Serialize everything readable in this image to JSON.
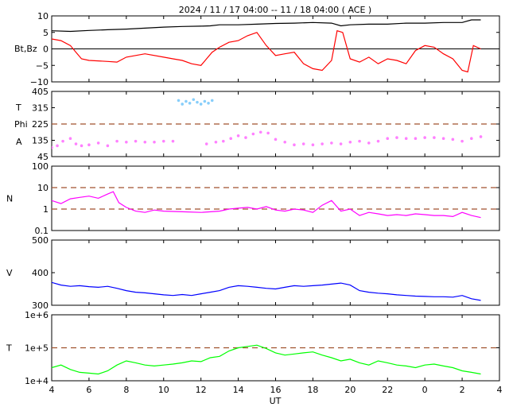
{
  "chart_data": {
    "type": "line",
    "title": "2024 / 11 / 17   04:00 -- 11 / 18   04:00 ( ACE )",
    "xlabel": "UT",
    "x_ticks": [
      "4",
      "6",
      "8",
      "10",
      "12",
      "14",
      "16",
      "18",
      "20",
      "22",
      "0",
      "2",
      "4"
    ],
    "x_range_hours": [
      4,
      28
    ],
    "data_end_hour": 27.0,
    "panels": [
      {
        "id": "magnetic",
        "ylabel": "Bt,Bz",
        "ylim": [
          -10,
          10
        ],
        "y_ticks": [
          "10",
          "5",
          "0",
          "−5",
          "−10"
        ],
        "y_tick_values": [
          10,
          5,
          0,
          -5,
          -10
        ],
        "scale": "linear",
        "zero_line": 0,
        "series": [
          {
            "name": "Bt",
            "color": "#000000",
            "style": "line",
            "x": [
              4.0,
              5.0,
              6.0,
              7.0,
              8.0,
              9.0,
              10.0,
              11.0,
              12.0,
              12.5,
              13.0,
              14.0,
              15.0,
              16.0,
              17.0,
              18.0,
              19.0,
              19.5,
              20.0,
              21.0,
              22.0,
              23.0,
              24.0,
              25.0,
              26.0,
              26.5,
              27.0
            ],
            "y": [
              5.5,
              5.3,
              5.6,
              5.8,
              6.0,
              6.3,
              6.6,
              6.8,
              6.9,
              7.0,
              7.3,
              7.3,
              7.5,
              7.7,
              7.8,
              8.0,
              7.8,
              7.0,
              7.3,
              7.5,
              7.5,
              7.8,
              7.8,
              8.0,
              8.0,
              8.8,
              8.8
            ]
          },
          {
            "name": "Bz",
            "color": "#ff0000",
            "style": "line",
            "x": [
              4.0,
              4.5,
              5.0,
              5.3,
              5.6,
              6.0,
              7.0,
              7.5,
              8.0,
              9.0,
              10.0,
              10.5,
              11.0,
              11.5,
              12.0,
              12.3,
              12.6,
              13.0,
              13.5,
              14.0,
              14.5,
              15.0,
              15.5,
              16.0,
              16.5,
              17.0,
              17.5,
              18.0,
              18.5,
              19.0,
              19.3,
              19.6,
              20.0,
              20.5,
              21.0,
              21.5,
              22.0,
              22.5,
              23.0,
              23.5,
              24.0,
              24.5,
              25.0,
              25.5,
              26.0,
              26.3,
              26.6,
              27.0
            ],
            "y": [
              3.0,
              2.5,
              1.0,
              -1.0,
              -3.0,
              -3.5,
              -3.8,
              -4.0,
              -2.5,
              -1.5,
              -2.5,
              -3.0,
              -3.5,
              -4.5,
              -5.0,
              -3.0,
              -1.0,
              0.5,
              2.0,
              2.5,
              4.0,
              5.0,
              1.0,
              -2.0,
              -1.5,
              -1.0,
              -4.5,
              -6.0,
              -6.5,
              -3.5,
              5.5,
              5.0,
              -3.0,
              -4.0,
              -2.5,
              -4.5,
              -3.0,
              -3.5,
              -4.5,
              -0.5,
              1.0,
              0.5,
              -1.5,
              -3.0,
              -6.5,
              -7.0,
              1.0,
              0.0
            ]
          }
        ]
      },
      {
        "id": "angles",
        "ylabel_top": "T",
        "ylabel_mid": "Phi",
        "ylabel_bottom": "A",
        "ylim": [
          45,
          405
        ],
        "y_ticks": [
          "405",
          "315",
          "225",
          "135",
          "45"
        ],
        "y_tick_values": [
          405,
          315,
          225,
          135,
          45
        ],
        "scale": "linear",
        "ref_lines": [
          225
        ],
        "series": [
          {
            "name": "Phi (away)",
            "color": "#87cefa",
            "style": "dots",
            "x": [
              10.8,
              11.0,
              11.2,
              11.4,
              11.6,
              11.8,
              12.0,
              12.2,
              12.4,
              12.6
            ],
            "y": [
              355,
              335,
              350,
              340,
              360,
              345,
              335,
              350,
              340,
              355
            ]
          },
          {
            "name": "Phi (toward)",
            "color": "#ff80ff",
            "style": "dots",
            "x": [
              4.0,
              4.3,
              4.6,
              5.0,
              5.3,
              5.6,
              6.0,
              6.5,
              7.0,
              7.5,
              8.0,
              8.5,
              9.0,
              9.5,
              10.0,
              10.5,
              12.3,
              12.8,
              13.2,
              13.6,
              14.0,
              14.4,
              14.8,
              15.2,
              15.6,
              16.0,
              16.5,
              17.0,
              17.5,
              18.0,
              18.5,
              19.0,
              19.5,
              20.0,
              20.5,
              21.0,
              21.5,
              22.0,
              22.5,
              23.0,
              23.5,
              24.0,
              24.5,
              25.0,
              25.5,
              26.0,
              26.5,
              27.0
            ],
            "y": [
              95,
              105,
              130,
              145,
              115,
              105,
              110,
              120,
              105,
              130,
              125,
              130,
              125,
              125,
              130,
              130,
              115,
              125,
              130,
              145,
              160,
              150,
              170,
              180,
              175,
              140,
              125,
              110,
              115,
              110,
              115,
              120,
              115,
              125,
              130,
              120,
              130,
              145,
              150,
              145,
              145,
              150,
              150,
              145,
              140,
              130,
              145,
              155
            ]
          }
        ]
      },
      {
        "id": "density",
        "ylabel": "N",
        "ylim": [
          0.1,
          100
        ],
        "y_ticks": [
          "100",
          "10",
          "1",
          "0.1"
        ],
        "y_tick_values": [
          100,
          10,
          1,
          0.1
        ],
        "scale": "log",
        "ref_lines": [
          10,
          1
        ],
        "series": [
          {
            "name": "N",
            "color": "#ff00ff",
            "style": "line",
            "x": [
              4.0,
              4.5,
              5.0,
              5.5,
              6.0,
              6.5,
              7.0,
              7.3,
              7.6,
              8.0,
              8.5,
              9.0,
              9.5,
              10.0,
              11.0,
              12.0,
              13.0,
              13.5,
              14.0,
              14.5,
              15.0,
              15.5,
              16.0,
              16.5,
              17.0,
              17.5,
              18.0,
              18.5,
              19.0,
              19.5,
              20.0,
              20.5,
              21.0,
              21.5,
              22.0,
              22.5,
              23.0,
              23.5,
              24.0,
              24.5,
              25.0,
              25.5,
              26.0,
              26.5,
              27.0
            ],
            "y": [
              2.5,
              1.8,
              3.0,
              3.5,
              4.0,
              3.2,
              5.0,
              6.5,
              2.0,
              1.2,
              0.8,
              0.7,
              0.9,
              0.8,
              0.75,
              0.7,
              0.8,
              1.0,
              1.1,
              1.2,
              1.0,
              1.3,
              0.9,
              0.8,
              1.0,
              0.9,
              0.7,
              1.5,
              2.5,
              0.8,
              1.0,
              0.5,
              0.7,
              0.6,
              0.5,
              0.55,
              0.5,
              0.6,
              0.55,
              0.5,
              0.5,
              0.45,
              0.7,
              0.5,
              0.4
            ]
          }
        ]
      },
      {
        "id": "speed",
        "ylabel": "V",
        "ylim": [
          300,
          500
        ],
        "y_ticks": [
          "500",
          "400",
          "300"
        ],
        "y_tick_values": [
          500,
          400,
          300
        ],
        "scale": "linear",
        "series": [
          {
            "name": "V",
            "color": "#0000ff",
            "style": "line",
            "x": [
              4.0,
              4.5,
              5.0,
              5.5,
              6.0,
              6.5,
              7.0,
              7.5,
              8.0,
              8.5,
              9.0,
              9.5,
              10.0,
              10.5,
              11.0,
              11.5,
              12.0,
              12.5,
              13.0,
              13.5,
              14.0,
              14.5,
              15.0,
              15.5,
              16.0,
              16.5,
              17.0,
              17.5,
              18.0,
              18.5,
              19.0,
              19.5,
              20.0,
              20.5,
              21.0,
              21.5,
              22.0,
              22.5,
              23.0,
              23.5,
              24.0,
              24.5,
              25.0,
              25.5,
              26.0,
              26.5,
              27.0
            ],
            "y": [
              370,
              362,
              358,
              360,
              357,
              355,
              358,
              352,
              345,
              340,
              338,
              335,
              332,
              330,
              333,
              330,
              335,
              340,
              345,
              355,
              360,
              358,
              355,
              352,
              350,
              355,
              360,
              358,
              360,
              362,
              365,
              368,
              362,
              345,
              340,
              337,
              335,
              332,
              330,
              328,
              327,
              326,
              326,
              325,
              330,
              320,
              315
            ]
          }
        ]
      },
      {
        "id": "temperature",
        "ylabel": "T",
        "ylim": [
          10000,
          1000000
        ],
        "y_ticks": [
          "1e+6",
          "1e+5",
          "1e+4"
        ],
        "y_tick_values": [
          1000000,
          100000,
          10000
        ],
        "scale": "log",
        "ref_lines": [
          100000
        ],
        "series": [
          {
            "name": "T",
            "color": "#00ff00",
            "style": "line",
            "x": [
              4.0,
              4.5,
              5.0,
              5.5,
              6.0,
              6.5,
              7.0,
              7.5,
              8.0,
              8.5,
              9.0,
              9.5,
              10.0,
              10.5,
              11.0,
              11.5,
              12.0,
              12.5,
              13.0,
              13.5,
              14.0,
              14.5,
              15.0,
              15.5,
              16.0,
              16.5,
              17.0,
              17.5,
              18.0,
              18.5,
              19.0,
              19.5,
              20.0,
              20.5,
              21.0,
              21.5,
              22.0,
              22.5,
              23.0,
              23.5,
              24.0,
              24.5,
              25.0,
              25.5,
              26.0,
              26.5,
              27.0
            ],
            "y": [
              25000,
              30000,
              22000,
              18000,
              17000,
              16000,
              20000,
              30000,
              40000,
              35000,
              30000,
              28000,
              30000,
              32000,
              35000,
              40000,
              38000,
              50000,
              55000,
              80000,
              100000,
              110000,
              120000,
              95000,
              70000,
              60000,
              65000,
              70000,
              75000,
              60000,
              50000,
              40000,
              45000,
              35000,
              30000,
              40000,
              35000,
              30000,
              28000,
              25000,
              30000,
              32000,
              28000,
              25000,
              20000,
              18000,
              16000
            ]
          }
        ]
      }
    ]
  }
}
